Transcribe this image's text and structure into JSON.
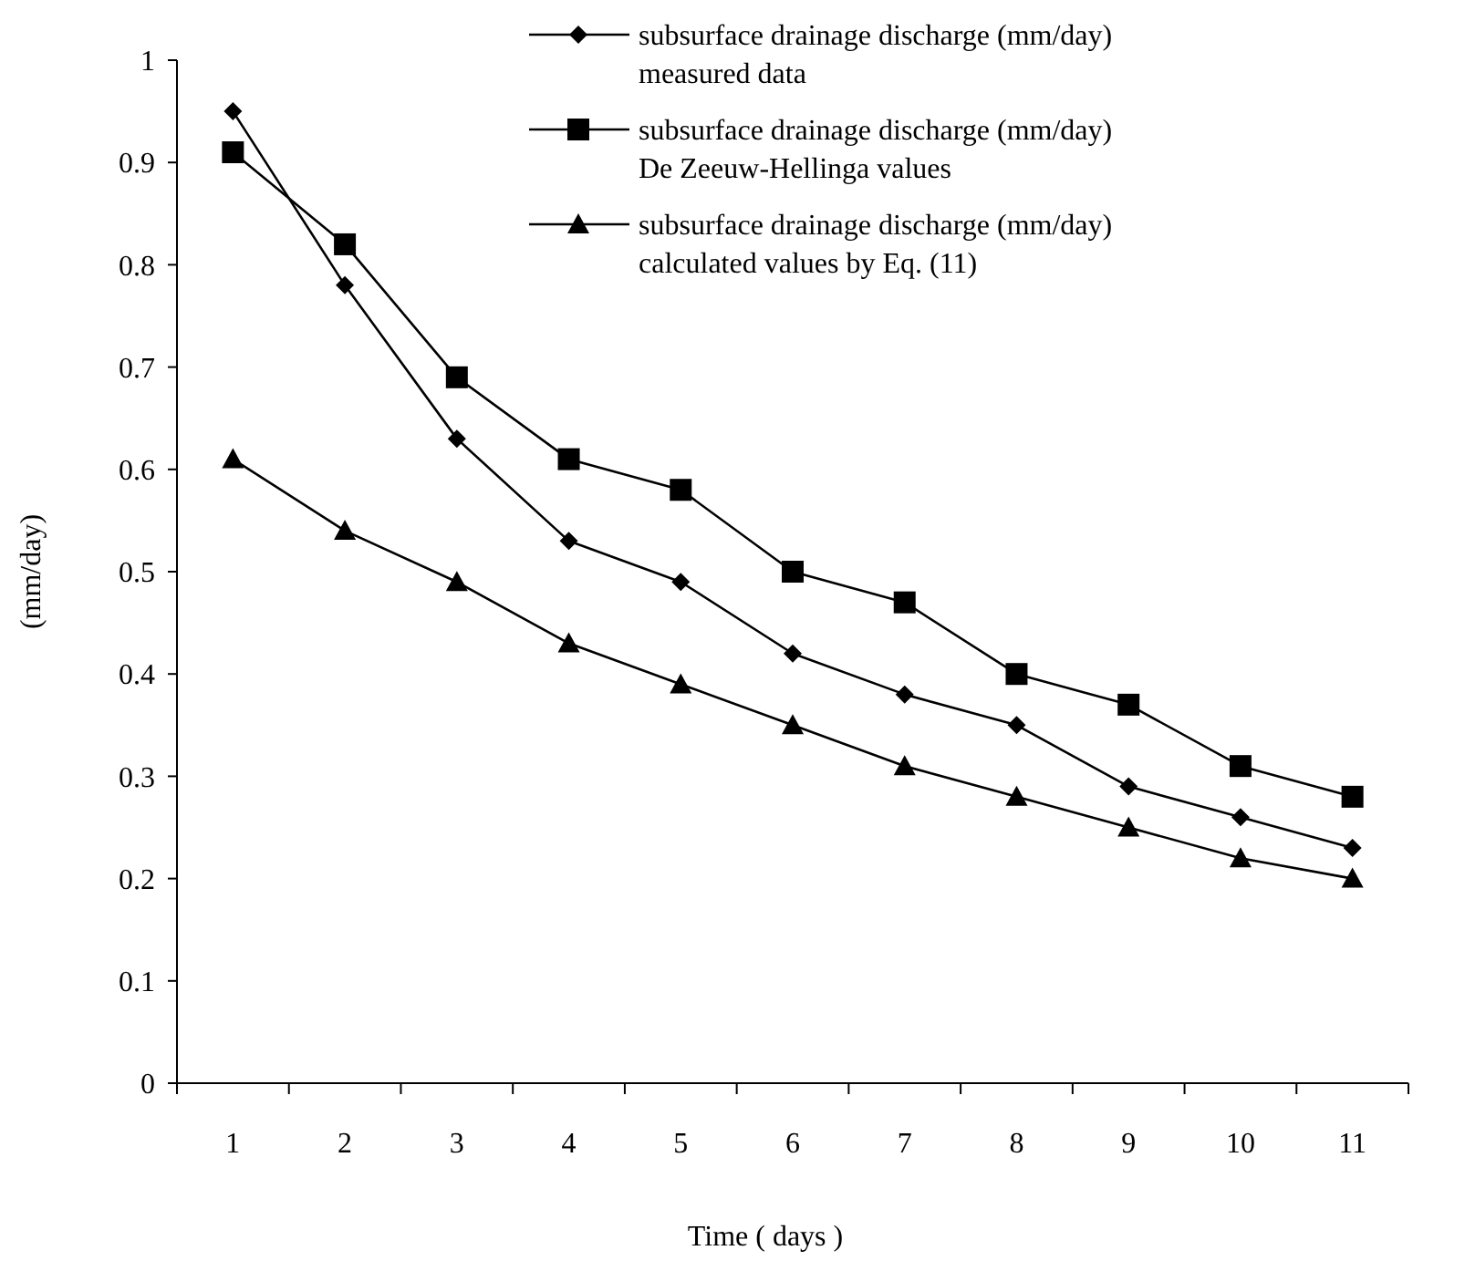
{
  "chart_data": {
    "type": "line",
    "xlabel": "Time ( days )",
    "ylabel": "(mm/day)",
    "categories": [
      "1",
      "2",
      "3",
      "4",
      "5",
      "6",
      "7",
      "8",
      "9",
      "10",
      "11"
    ],
    "series": [
      {
        "name": "subsurface drainage discharge (mm/day) measured data",
        "color": "#000000",
        "marker": "diamond",
        "values": [
          0.95,
          0.78,
          0.63,
          0.53,
          0.49,
          0.42,
          0.38,
          0.35,
          0.29,
          0.26,
          0.23
        ]
      },
      {
        "name": "subsurface drainage discharge (mm/day) De Zeeuw-Hellinga values",
        "color": "#000000",
        "marker": "square",
        "values": [
          0.91,
          0.82,
          0.69,
          0.61,
          0.58,
          0.5,
          0.47,
          0.4,
          0.37,
          0.31,
          0.28
        ]
      },
      {
        "name": "subsurface drainage discharge (mm/day) calculated values by Eq. (11)",
        "color": "#000000",
        "marker": "triangle",
        "values": [
          0.61,
          0.54,
          0.49,
          0.43,
          0.39,
          0.35,
          0.31,
          0.28,
          0.25,
          0.22,
          0.2
        ]
      }
    ],
    "ylim": [
      0,
      1
    ],
    "yticks": [
      0,
      {
        "value": 0.1,
        "label": "0.1"
      },
      {
        "value": 0.2,
        "label": "0.2"
      },
      {
        "value": 0.3,
        "label": "0.3"
      },
      {
        "value": 0.4,
        "label": "0.4"
      },
      {
        "value": 0.5,
        "label": "0.5"
      },
      {
        "value": 0.6,
        "label": "0.6"
      },
      {
        "value": 0.7,
        "label": "0.7"
      },
      {
        "value": 0.8,
        "label": "0.8"
      },
      {
        "value": 0.9,
        "label": "0.9"
      },
      1
    ],
    "grid": false,
    "legend": "top right",
    "line_style": "solid"
  }
}
